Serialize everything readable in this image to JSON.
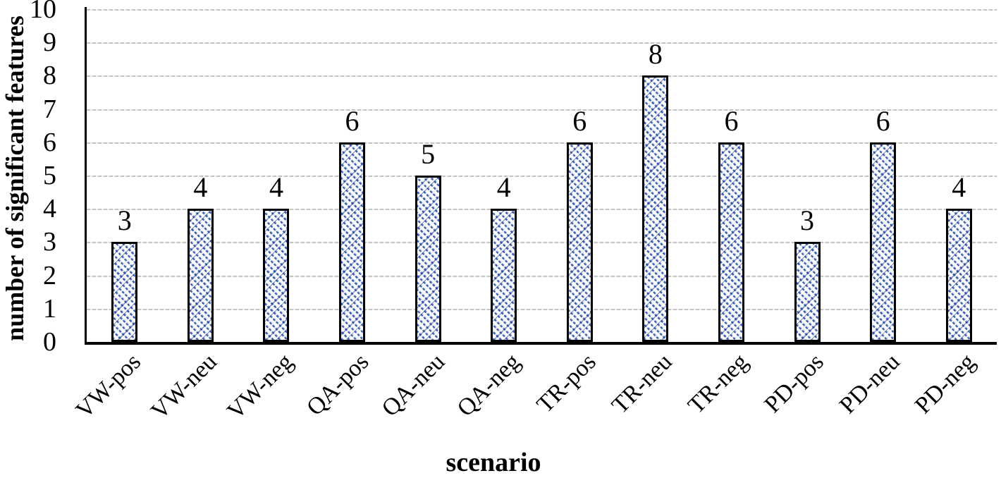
{
  "chart_data": {
    "type": "bar",
    "title": "",
    "categories": [
      "VW-pos",
      "VW-neu",
      "VW-neg",
      "QA-pos",
      "QA-neu",
      "QA-neg",
      "TR-pos",
      "TR-neu",
      "TR-neg",
      "PD-pos",
      "PD-neu",
      "PD-neg"
    ],
    "values": [
      3,
      4,
      4,
      6,
      5,
      4,
      6,
      8,
      6,
      3,
      6,
      4
    ],
    "xlabel": "scenario",
    "ylabel": "number of significant features",
    "ylim": [
      0,
      10
    ],
    "yticks": [
      0,
      1,
      2,
      3,
      4,
      5,
      6,
      7,
      8,
      9,
      10
    ],
    "grid": "horizontal-dashed",
    "legend_position": "none",
    "data_labels_shown": true,
    "x_tick_rotation_deg": 45,
    "styles": {
      "bar_fill_pattern": "diagonal-hatch",
      "hatch_color": "#3a5fae",
      "hatch_dot_color": "#1b3a94",
      "bar_border_color": "#000000",
      "gridline_color": "#c3c3c3",
      "axis_color": "#000000",
      "text_color": "#000000",
      "background_color": "#ffffff"
    }
  }
}
